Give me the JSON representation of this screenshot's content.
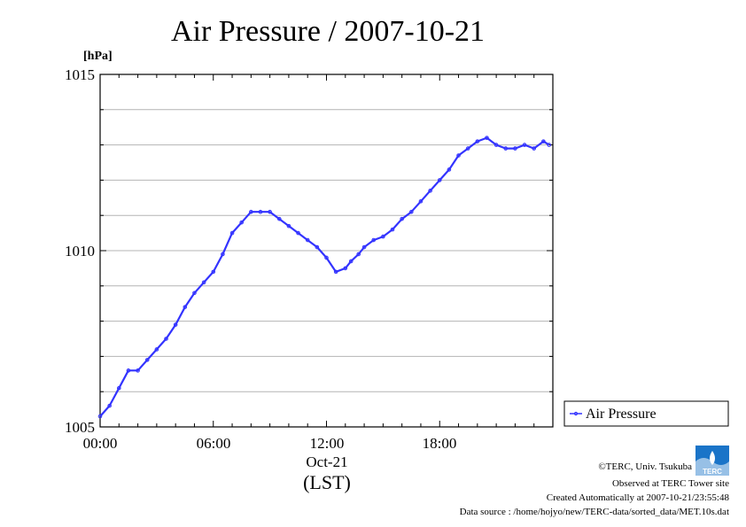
{
  "chart_data": {
    "type": "line",
    "title": "Air Pressure / 2007-10-21",
    "ylabel": "[hPa]",
    "y_ticks": [
      "1005",
      "1010",
      "1015"
    ],
    "ylim": [
      1005,
      1015
    ],
    "x_ticks": [
      "00:00",
      "06:00",
      "12:00",
      "18:00"
    ],
    "x_date_label": "Oct-21",
    "xlabel": "(LST)",
    "xlim_hours": [
      0,
      24
    ],
    "grid": true,
    "legend_position": "right",
    "series": [
      {
        "name": "Air Pressure",
        "color": "#3333ff",
        "x_hours": [
          0.0,
          0.5,
          1.0,
          1.5,
          2.0,
          2.5,
          3.0,
          3.5,
          4.0,
          4.5,
          5.0,
          5.5,
          6.0,
          6.5,
          7.0,
          7.5,
          8.0,
          8.5,
          9.0,
          9.5,
          10.0,
          10.5,
          11.0,
          11.5,
          12.0,
          12.5,
          13.0,
          13.3,
          13.7,
          14.0,
          14.5,
          15.0,
          15.5,
          16.0,
          16.5,
          17.0,
          17.5,
          18.0,
          18.5,
          19.0,
          19.5,
          20.0,
          20.5,
          21.0,
          21.5,
          22.0,
          22.5,
          23.0,
          23.5,
          23.8
        ],
        "values": [
          1005.3,
          1005.6,
          1006.1,
          1006.6,
          1006.6,
          1006.9,
          1007.2,
          1007.5,
          1007.9,
          1008.4,
          1008.8,
          1009.1,
          1009.4,
          1009.9,
          1010.5,
          1010.8,
          1011.1,
          1011.1,
          1011.1,
          1010.9,
          1010.7,
          1010.5,
          1010.3,
          1010.1,
          1009.8,
          1009.4,
          1009.5,
          1009.7,
          1009.9,
          1010.1,
          1010.3,
          1010.4,
          1010.6,
          1010.9,
          1011.1,
          1011.4,
          1011.7,
          1012.0,
          1012.3,
          1012.7,
          1012.9,
          1013.1,
          1013.2,
          1013.0,
          1012.9,
          1012.9,
          1013.0,
          1012.9,
          1013.1,
          1013.0
        ]
      }
    ]
  },
  "credits": {
    "copyright": "©TERC, Univ. Tsukuba",
    "observed": "Observed at TERC Tower site",
    "created": "Created Automatically at 2007-10-21/23:55:48",
    "source": "Data source : /home/hojyo/new/TERC-data/sorted_data/MET.10s.dat",
    "logo_text": "TERC"
  }
}
